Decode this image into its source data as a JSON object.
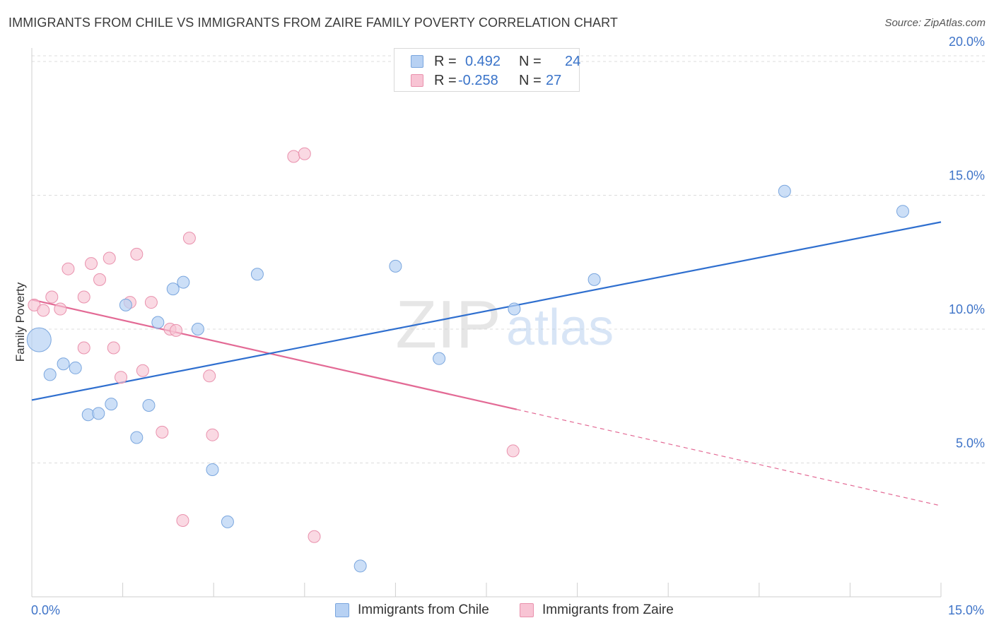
{
  "title": "IMMIGRANTS FROM CHILE VS IMMIGRANTS FROM ZAIRE FAMILY POVERTY CORRELATION CHART",
  "source": "Source: ZipAtlas.com",
  "watermark": {
    "zip": "ZIP",
    "atlas": "atlas"
  },
  "legend": {
    "rows": [
      {
        "r_label": "R =",
        "r_value": "0.492",
        "n_label": "N =",
        "n_value": "24"
      },
      {
        "r_label": "R =",
        "r_value": "-0.258",
        "n_label": "N =",
        "n_value": "27"
      }
    ]
  },
  "bottom_legend": {
    "chile": "Immigrants from Chile",
    "zaire": "Immigrants from Zaire"
  },
  "colors": {
    "chile_fill": "#b7d1f3",
    "chile_stroke": "#7aa6de",
    "chile_line": "#2f6fcf",
    "zaire_fill": "#f8c4d4",
    "zaire_stroke": "#e991ad",
    "zaire_line": "#e36a95",
    "axis_text": "#3f74c8",
    "grid": "#dcdcdc"
  },
  "chart_data": {
    "type": "scatter",
    "title": "IMMIGRANTS FROM CHILE VS IMMIGRANTS FROM ZAIRE FAMILY POVERTY CORRELATION CHART",
    "xlabel": "",
    "ylabel": "Family Poverty",
    "xlim": [
      0,
      15
    ],
    "ylim": [
      0,
      20.5
    ],
    "x_tick_labels": [
      "0.0%",
      "15.0%"
    ],
    "y_ticks": [
      5,
      10,
      15,
      20
    ],
    "y_tick_labels": [
      "5.0%",
      "10.0%",
      "15.0%",
      "20.0%"
    ],
    "grid": true,
    "series": [
      {
        "name": "Immigrants from Chile",
        "r": 0.492,
        "n": 24,
        "trend": {
          "x0": 0,
          "y0": 7.35,
          "x1": 15,
          "y1": 14.0
        },
        "points": [
          {
            "x": 0.12,
            "y": 9.6,
            "big": true
          },
          {
            "x": 0.3,
            "y": 8.3
          },
          {
            "x": 0.52,
            "y": 8.7
          },
          {
            "x": 0.72,
            "y": 8.55
          },
          {
            "x": 0.93,
            "y": 6.8
          },
          {
            "x": 1.1,
            "y": 6.85
          },
          {
            "x": 1.31,
            "y": 7.2
          },
          {
            "x": 1.55,
            "y": 10.9
          },
          {
            "x": 1.73,
            "y": 5.95
          },
          {
            "x": 1.93,
            "y": 7.15
          },
          {
            "x": 2.08,
            "y": 10.25
          },
          {
            "x": 2.33,
            "y": 11.5
          },
          {
            "x": 2.5,
            "y": 11.75
          },
          {
            "x": 2.74,
            "y": 10.0
          },
          {
            "x": 2.98,
            "y": 4.75
          },
          {
            "x": 3.23,
            "y": 2.8
          },
          {
            "x": 3.72,
            "y": 12.05
          },
          {
            "x": 5.42,
            "y": 1.15
          },
          {
            "x": 6.0,
            "y": 12.35
          },
          {
            "x": 6.72,
            "y": 8.9
          },
          {
            "x": 7.96,
            "y": 10.75
          },
          {
            "x": 9.28,
            "y": 11.85
          },
          {
            "x": 12.42,
            "y": 15.15
          },
          {
            "x": 14.37,
            "y": 14.4
          }
        ]
      },
      {
        "name": "Immigrants from Zaire",
        "r": -0.258,
        "n": 27,
        "trend": {
          "x0": 0,
          "y0": 11.1,
          "x1": 8.0,
          "y1": 7.0,
          "dash_x1": 15,
          "dash_y1": 3.4
        },
        "points": [
          {
            "x": 0.04,
            "y": 10.9
          },
          {
            "x": 0.19,
            "y": 10.7
          },
          {
            "x": 0.33,
            "y": 11.2
          },
          {
            "x": 0.47,
            "y": 10.75
          },
          {
            "x": 0.6,
            "y": 12.25
          },
          {
            "x": 0.86,
            "y": 11.2
          },
          {
            "x": 0.86,
            "y": 9.3
          },
          {
            "x": 0.98,
            "y": 12.45
          },
          {
            "x": 1.12,
            "y": 11.85
          },
          {
            "x": 1.28,
            "y": 12.65
          },
          {
            "x": 1.35,
            "y": 9.3
          },
          {
            "x": 1.47,
            "y": 8.2
          },
          {
            "x": 1.62,
            "y": 11.0
          },
          {
            "x": 1.73,
            "y": 12.8
          },
          {
            "x": 1.83,
            "y": 8.45
          },
          {
            "x": 1.97,
            "y": 11.0
          },
          {
            "x": 2.15,
            "y": 6.15
          },
          {
            "x": 2.28,
            "y": 10.0
          },
          {
            "x": 2.38,
            "y": 9.95
          },
          {
            "x": 2.49,
            "y": 2.85
          },
          {
            "x": 2.6,
            "y": 13.4
          },
          {
            "x": 2.93,
            "y": 8.25
          },
          {
            "x": 2.98,
            "y": 6.05
          },
          {
            "x": 4.32,
            "y": 16.45
          },
          {
            "x": 4.5,
            "y": 16.55
          },
          {
            "x": 4.66,
            "y": 2.25
          },
          {
            "x": 7.94,
            "y": 5.45
          }
        ]
      }
    ]
  }
}
